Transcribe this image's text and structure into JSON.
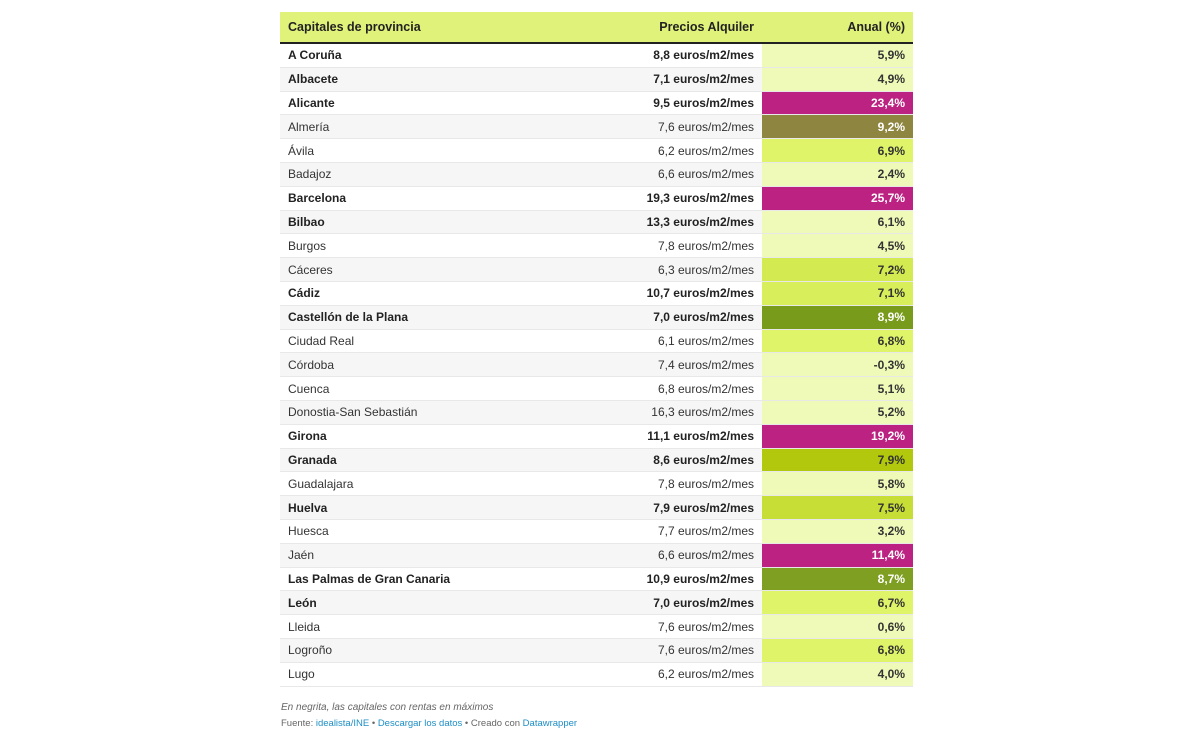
{
  "header": {
    "col1": "Capitales de provincia",
    "col2": "Precios Alquiler",
    "col3": "Anual (%)"
  },
  "rows": [
    {
      "city": "A Coruña",
      "price": "8,8 euros/m2/mes",
      "annual": "5,9%",
      "bold": true,
      "color": "#eff9b8"
    },
    {
      "city": "Albacete",
      "price": "7,1 euros/m2/mes",
      "annual": "4,9%",
      "bold": true,
      "color": "#eff9b8"
    },
    {
      "city": "Alicante",
      "price": "9,5 euros/m2/mes",
      "annual": "23,4%",
      "bold": true,
      "color": "#bb2281"
    },
    {
      "city": "Almería",
      "price": "7,6 euros/m2/mes",
      "annual": "9,2%",
      "bold": false,
      "color": "#8e8540"
    },
    {
      "city": "Ávila",
      "price": "6,2 euros/m2/mes",
      "annual": "6,9%",
      "bold": false,
      "color": "#e0f46a"
    },
    {
      "city": "Badajoz",
      "price": "6,6 euros/m2/mes",
      "annual": "2,4%",
      "bold": false,
      "color": "#eff9b8"
    },
    {
      "city": "Barcelona",
      "price": "19,3 euros/m2/mes",
      "annual": "25,7%",
      "bold": true,
      "color": "#bb2281"
    },
    {
      "city": "Bilbao",
      "price": "13,3 euros/m2/mes",
      "annual": "6,1%",
      "bold": true,
      "color": "#eff9b8"
    },
    {
      "city": "Burgos",
      "price": "7,8 euros/m2/mes",
      "annual": "4,5%",
      "bold": false,
      "color": "#eff9b8"
    },
    {
      "city": "Cáceres",
      "price": "6,3 euros/m2/mes",
      "annual": "7,2%",
      "bold": false,
      "color": "#d3ea50"
    },
    {
      "city": "Cádiz",
      "price": "10,7 euros/m2/mes",
      "annual": "7,1%",
      "bold": true,
      "color": "#d8ee5a"
    },
    {
      "city": "Castellón de la Plana",
      "price": "7,0 euros/m2/mes",
      "annual": "8,9%",
      "bold": true,
      "color": "#789b1b"
    },
    {
      "city": "Ciudad Real",
      "price": "6,1 euros/m2/mes",
      "annual": "6,8%",
      "bold": false,
      "color": "#e0f46a"
    },
    {
      "city": "Córdoba",
      "price": "7,4 euros/m2/mes",
      "annual": "-0,3%",
      "bold": false,
      "color": "#eff9b8"
    },
    {
      "city": "Cuenca",
      "price": "6,8 euros/m2/mes",
      "annual": "5,1%",
      "bold": false,
      "color": "#eff9b8"
    },
    {
      "city": "Donostia-San Sebastián",
      "price": "16,3 euros/m2/mes",
      "annual": "5,2%",
      "bold": false,
      "color": "#eff9b8"
    },
    {
      "city": "Girona",
      "price": "11,1 euros/m2/mes",
      "annual": "19,2%",
      "bold": true,
      "color": "#bb2281"
    },
    {
      "city": "Granada",
      "price": "8,6 euros/m2/mes",
      "annual": "7,9%",
      "bold": true,
      "color": "#b1c80c"
    },
    {
      "city": "Guadalajara",
      "price": "7,8 euros/m2/mes",
      "annual": "5,8%",
      "bold": false,
      "color": "#eff9b8"
    },
    {
      "city": "Huelva",
      "price": "7,9 euros/m2/mes",
      "annual": "7,5%",
      "bold": true,
      "color": "#c6de36"
    },
    {
      "city": "Huesca",
      "price": "7,7 euros/m2/mes",
      "annual": "3,2%",
      "bold": false,
      "color": "#eff9b8"
    },
    {
      "city": "Jaén",
      "price": "6,6 euros/m2/mes",
      "annual": "11,4%",
      "bold": false,
      "color": "#bb2281"
    },
    {
      "city": "Las Palmas de Gran Canaria",
      "price": "10,9 euros/m2/mes",
      "annual": "8,7%",
      "bold": true,
      "color": "#7e9f22"
    },
    {
      "city": "León",
      "price": "7,0 euros/m2/mes",
      "annual": "6,7%",
      "bold": true,
      "color": "#e0f46a"
    },
    {
      "city": "Lleida",
      "price": "7,6 euros/m2/mes",
      "annual": "0,6%",
      "bold": false,
      "color": "#eff9b8"
    },
    {
      "city": "Logroño",
      "price": "7,6 euros/m2/mes",
      "annual": "6,8%",
      "bold": false,
      "color": "#e0f46a"
    },
    {
      "city": "Lugo",
      "price": "6,2 euros/m2/mes",
      "annual": "4,0%",
      "bold": false,
      "color": "#eff9b8"
    }
  ],
  "notes": {
    "caption": "En negrita, las capitales con rentas en máximos",
    "source_label": "Fuente: ",
    "source_link": "idealista/INE",
    "sep": " • ",
    "download": "Descargar los datos",
    "created": "Creado con ",
    "dw": "Datawrapper"
  }
}
